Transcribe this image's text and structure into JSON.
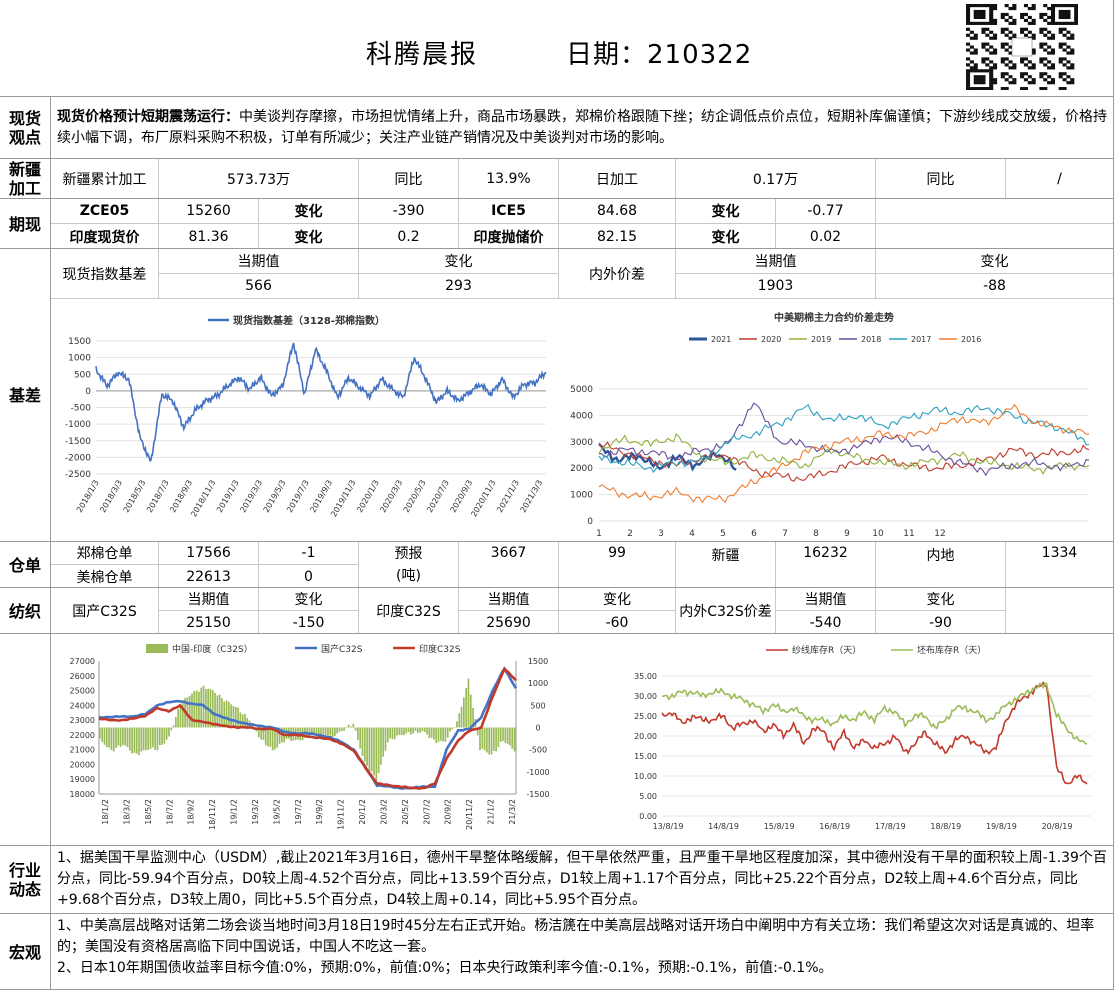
{
  "header": {
    "title": "科腾晨报",
    "date_label": "日期：",
    "date": "210322"
  },
  "view": {
    "label": "现货\n观点",
    "lead": "现货价格预计短期震荡运行：",
    "text": "中美谈判存摩擦，市场担忧情绪上升，商品市场暴跌，郑棉价格跟随下挫；纺企调低点价点位，短期补库偏谨慎；下游纱线成交放缓，价格持续小幅下调，布厂原料采购不积极，订单有所减少；关注产业链产销情况及中美谈判对市场的影响。"
  },
  "xinjiang": {
    "label": "新疆\n加工",
    "cum_label": "新疆累计加工",
    "cum_value": "573.73万",
    "yoy_label": "同比",
    "yoy_value": "13.9%",
    "daily_label": "日加工",
    "daily_value": "0.17万",
    "yoy2_label": "同比",
    "yoy2_value": "/"
  },
  "futures": {
    "label": "期现",
    "r1": {
      "a": "ZCE05",
      "av": "15260",
      "ac": "变化",
      "acv": "-390",
      "b": "ICE5",
      "bv": "84.68",
      "bc": "变化",
      "bcv": "-0.77"
    },
    "r2": {
      "a": "印度现货价",
      "av": "81.36",
      "ac": "变化",
      "acv": "0.2",
      "b": "印度抛储价",
      "bv": "82.15",
      "bc": "变化",
      "bcv": "0.02"
    }
  },
  "basis": {
    "label": "基差",
    "spot_label": "现货指数基差",
    "cur_label": "当期值",
    "chg_label": "变化",
    "spot_cur": "566",
    "spot_chg": "293",
    "spread_label": "内外价差",
    "spread_cur_label": "当期值",
    "spread_chg_label": "变化",
    "spread_cur": "1903",
    "spread_chg": "-88"
  },
  "warehouse": {
    "label": "仓单",
    "zce_label": "郑棉仓单",
    "zce_value": "17566",
    "zce_chg": "-1",
    "us_label": "美棉仓单",
    "us_value": "22613",
    "us_chg": "0",
    "fc_label": "预报\n(吨)",
    "fc_value": "3667",
    "fc_chg": "99",
    "xj_label": "新疆",
    "xj_value": "16232",
    "nd_label": "内地",
    "nd_value": "1334"
  },
  "spinning": {
    "label": "纺织",
    "dom_label": "国产C32S",
    "cur_label": "当期值",
    "chg_label": "变化",
    "dom_cur": "25150",
    "dom_chg": "-150",
    "ind_label": "印度C32S",
    "ind_cur": "25690",
    "ind_chg": "-60",
    "spread_label": "内外C32S价差",
    "spread_cur": "-540",
    "spread_chg": "-90"
  },
  "industry": {
    "label": "行业\n动态",
    "text": "1、据美国干旱监测中心（USDM）,截止2021年3月16日，德州干旱整体略缓解，但干旱依然严重，且严重干旱地区程度加深，其中德州没有干旱的面积较上周-1.39个百分点，同比-59.94个百分点，D0较上周-4.52个百分点，同比+13.59个百分点，D1较上周+1.17个百分点，同比+25.22个百分点，D2较上周+4.6个百分点，同比+9.68个百分点，D3较上周0，同比+5.5个百分点，D4较上周+0.14，同比+5.95个百分点。"
  },
  "macro": {
    "label": "宏观",
    "line1": "1、中美高层战略对话第二场会谈当地时间3月18日19时45分左右正式开始。杨洁篪在中美高层战略对话开场白中阐明中方有关立场：我们希望这次对话是真诚的、坦率的；美国没有资格居高临下同中国说话，中国人不吃这一套。",
    "line2": "2、日本10年期国债收益率目标今值:0%，预期:0%，前值:0%；日本央行政策利率今值:-0.1%，预期:-0.1%，前值:-0.1%。"
  },
  "chart_data": [
    {
      "type": "line",
      "id": "basis",
      "title": "",
      "series": [
        {
          "name": "现货指数基差（3128-郑棉指数）",
          "color": "#4472c4",
          "points": [
            [
              "2018/1/3",
              650
            ],
            [
              "2018/2/1",
              150
            ],
            [
              "2018/3/3",
              550
            ],
            [
              "2018/4/1",
              350
            ],
            [
              "2018/5/3",
              -1400
            ],
            [
              "2018/5/20",
              -2150
            ],
            [
              "2018/6/15",
              -100
            ],
            [
              "2018/7/3",
              -300
            ],
            [
              "2018/8/1",
              -1100
            ],
            [
              "2018/9/3",
              -600
            ],
            [
              "2018/10/1",
              -300
            ],
            [
              "2018/11/3",
              -150
            ],
            [
              "2018/12/1",
              150
            ],
            [
              "2019/1/3",
              400
            ],
            [
              "2019/2/1",
              50
            ],
            [
              "2019/3/3",
              400
            ],
            [
              "2019/4/1",
              -150
            ],
            [
              "2019/5/3",
              150
            ],
            [
              "2019/5/20",
              1450
            ],
            [
              "2019/6/15",
              -100
            ],
            [
              "2019/7/3",
              1250
            ],
            [
              "2019/8/1",
              600
            ],
            [
              "2019/9/3",
              -200
            ],
            [
              "2019/10/1",
              400
            ],
            [
              "2019/11/3",
              100
            ],
            [
              "2019/12/1",
              -150
            ],
            [
              "2020/1/3",
              350
            ],
            [
              "2020/2/1",
              50
            ],
            [
              "2020/3/3",
              -200
            ],
            [
              "2020/4/1",
              1000
            ],
            [
              "2020/5/3",
              400
            ],
            [
              "2020/6/1",
              -350
            ],
            [
              "2020/7/3",
              0
            ],
            [
              "2020/8/1",
              -300
            ],
            [
              "2020/9/3",
              -50
            ],
            [
              "2020/10/1",
              200
            ],
            [
              "2020/11/3",
              -100
            ],
            [
              "2020/12/1",
              350
            ],
            [
              "2021/1/3",
              -200
            ],
            [
              "2021/2/1",
              200
            ],
            [
              "2021/3/3",
              250
            ],
            [
              "2021/3/20",
              566
            ]
          ]
        }
      ],
      "x_ticks": [
        "2018/1/3",
        "2018/3/3",
        "2018/5/3",
        "2018/7/3",
        "2018/9/3",
        "2018/11/3",
        "2019/1/3",
        "2019/3/3",
        "2019/5/3",
        "2019/7/3",
        "2019/9/3",
        "2019/11/3",
        "2020/1/3",
        "2020/3/3",
        "2020/5/3",
        "2020/7/3",
        "2020/9/3",
        "2020/11/3",
        "2021/1/3",
        "2021/3/3"
      ],
      "ylim": [
        -2500,
        1500
      ],
      "y_ticks": [
        1500,
        1000,
        500,
        0,
        -500,
        -1000,
        -1500,
        -2000,
        -2500
      ]
    },
    {
      "type": "line",
      "id": "spread",
      "title": "中美期棉主力合约价差走势",
      "x_ticks": [
        "1\n月",
        "2\n月",
        "3\n月",
        "4\n月",
        "5\n月",
        "6\n月",
        "7\n月",
        "8\n月",
        "9\n月",
        "10\n月",
        "11\n月",
        "12\n月"
      ],
      "ylim": [
        0,
        5000
      ],
      "y_ticks": [
        5000,
        4000,
        3000,
        2000,
        1000,
        0
      ],
      "series": [
        {
          "name": "2021",
          "color": "#2e5597",
          "values": [
            2800,
            2300,
            2500,
            2000,
            2400,
            2100,
            2600,
            1950
          ]
        },
        {
          "name": "2020",
          "color": "#c0392b",
          "values": [
            2900,
            2600,
            2300,
            2100,
            2400,
            2500,
            1900,
            1700,
            1600,
            1900,
            2200,
            2400,
            2100,
            2000,
            2100,
            2300,
            2700,
            2500,
            2600,
            2700
          ]
        },
        {
          "name": "2019",
          "color": "#8db23a",
          "values": [
            2700,
            3100,
            2900,
            3200,
            2400,
            2200,
            2500,
            2300,
            2100,
            2700,
            2400,
            2200,
            2100,
            2300,
            2500,
            2200,
            2100,
            1950,
            2100,
            2100
          ]
        },
        {
          "name": "2018",
          "color": "#6a4c9c",
          "values": [
            2500,
            2700,
            2600,
            2400,
            2700,
            2900,
            4500,
            3000,
            2900,
            2600,
            2800,
            3200,
            3000,
            2600,
            2200,
            1900,
            2100,
            2200,
            2000,
            2300
          ]
        },
        {
          "name": "2017",
          "color": "#2aa0c0",
          "values": [
            2400,
            2200,
            2000,
            2200,
            2300,
            3000,
            3300,
            3700,
            4300,
            3800,
            4000,
            3600,
            3900,
            4200,
            4100,
            4300,
            4000,
            3700,
            3500,
            2900
          ]
        },
        {
          "name": "2016",
          "color": "#ed7d31",
          "values": [
            1300,
            1000,
            900,
            1100,
            800,
            900,
            1500,
            2000,
            2600,
            2900,
            3100,
            3300,
            3200,
            3500,
            3900,
            3700,
            4300,
            3700,
            3500,
            3300
          ]
        }
      ]
    },
    {
      "type": "bar+line",
      "id": "c32s",
      "title": "",
      "x_ticks": [
        "18/1/2",
        "18/3/2",
        "18/5/2",
        "18/7/2",
        "18/9/2",
        "18/11/2",
        "19/1/2",
        "19/3/2",
        "19/5/2",
        "19/7/2",
        "19/9/2",
        "19/11/2",
        "20/1/2",
        "20/3/2",
        "20/5/2",
        "20/7/2",
        "20/9/2",
        "20/11/2",
        "21/1/2",
        "21/3/2"
      ],
      "ylim_left": [
        18000,
        27000
      ],
      "y_ticks_left": [
        27000,
        26000,
        25000,
        24000,
        23000,
        22000,
        21000,
        20000,
        19000,
        18000
      ],
      "ylim_right": [
        -1500,
        1500
      ],
      "y_ticks_right": [
        1500,
        1000,
        500,
        0,
        -500,
        -1000,
        -1500
      ],
      "series": [
        {
          "name": "中国-印度（C32S）",
          "color": "#9bbb59",
          "axis": "right",
          "values": [
            -300,
            -500,
            -400,
            -600,
            -500,
            -500,
            -200,
            500,
            800,
            900,
            800,
            600,
            400,
            200,
            -300,
            -500,
            -300,
            -300,
            -200,
            -200,
            -200,
            -100,
            100,
            -800,
            -1200,
            -300,
            -200,
            -100,
            -100,
            -300,
            -300,
            100,
            1100,
            -500,
            -600,
            -300,
            -540
          ]
        },
        {
          "name": "国产C32S",
          "color": "#4472c4",
          "axis": "left",
          "values": [
            23200,
            23200,
            23250,
            23250,
            23400,
            24000,
            24200,
            24300,
            24100,
            24000,
            23400,
            23100,
            22900,
            22700,
            22600,
            22500,
            22200,
            22100,
            22100,
            22000,
            21800,
            21500,
            21000,
            19800,
            18600,
            18500,
            18400,
            18400,
            18500,
            18500,
            21000,
            22300,
            22400,
            23200,
            25000,
            26500,
            25150
          ]
        },
        {
          "name": "印度C32S",
          "color": "#c0392b",
          "axis": "left",
          "values": [
            23100,
            23000,
            23000,
            23100,
            23300,
            23800,
            23600,
            24000,
            23000,
            22900,
            22700,
            22600,
            22500,
            22500,
            22400,
            22400,
            22000,
            22000,
            21900,
            21800,
            21700,
            21400,
            20900,
            19800,
            18700,
            18600,
            18500,
            18400,
            18400,
            18700,
            20400,
            21600,
            22300,
            22500,
            24600,
            26500,
            25690
          ]
        }
      ]
    },
    {
      "type": "line",
      "id": "stock",
      "title": "",
      "x_ticks": [
        "13/8/19",
        "14/8/19",
        "15/8/19",
        "16/8/19",
        "17/8/19",
        "18/8/19",
        "19/8/19",
        "20/8/19"
      ],
      "ylim": [
        0,
        35
      ],
      "y_ticks": [
        35,
        30,
        25,
        20,
        15,
        10,
        5,
        0
      ],
      "y_tick_labels": [
        "35.00",
        "30.00",
        "25.00",
        "20.00",
        "15.00",
        "10.00",
        "5.00",
        "0.00"
      ],
      "series": [
        {
          "name": "纱线库存R（天）",
          "color": "#c0392b",
          "values": [
            25,
            26,
            23,
            25,
            24,
            24,
            25,
            22,
            23,
            24,
            21,
            23,
            20,
            23,
            18,
            22,
            21,
            17,
            21,
            17,
            19,
            17,
            18,
            20,
            16,
            18,
            21,
            18,
            16,
            19,
            20,
            18,
            16,
            17,
            24,
            28,
            30,
            32,
            33,
            12,
            8,
            10,
            8
          ]
        },
        {
          "name": "坯布库存R（天）",
          "color": "#9bbb59",
          "values": [
            30,
            30,
            31,
            31,
            30,
            31,
            31,
            30,
            29,
            28,
            26,
            28,
            26,
            27,
            25,
            24,
            24,
            23,
            25,
            24,
            26,
            24,
            27,
            26,
            23,
            25,
            25,
            22,
            24,
            27,
            27,
            26,
            24,
            25,
            28,
            29,
            31,
            32,
            33,
            25,
            22,
            19,
            18
          ]
        }
      ]
    }
  ]
}
